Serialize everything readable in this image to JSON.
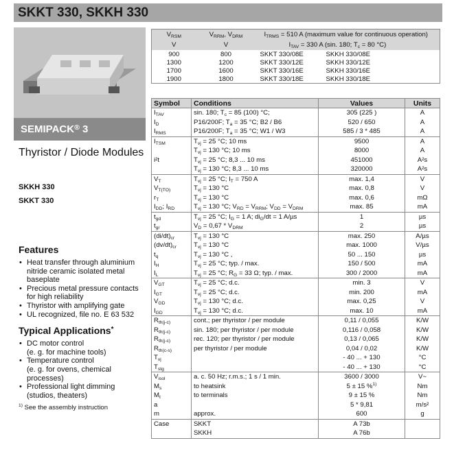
{
  "header": {
    "title": "SKKT 330, SKKH 330"
  },
  "sidebar": {
    "image_caption": [
      "SEMIPACK",
      {
        "sup": "®"
      },
      " 3"
    ],
    "product_family": "Thyristor / Diode Modules",
    "types": [
      "SKKH 330",
      "SKKT 330"
    ],
    "features_title": "Features",
    "features": [
      [
        "Heat transfer through aluminium",
        "nitride ceramic isolated metal",
        "baseplate"
      ],
      [
        "Precious metal pressure contacts",
        "for high reliability"
      ],
      [
        "Thyristor with amplifying gate"
      ],
      [
        "UL recognized, file no. E 63 532"
      ]
    ],
    "applications_title": [
      "Typical Applications",
      {
        "sup": "*"
      }
    ],
    "applications": [
      [
        "DC motor control",
        "(e. g. for machine tools)"
      ],
      [
        "Temperature control",
        "(e. g. for ovens, chemical",
        "processes)"
      ],
      [
        "Professional light dimming",
        "(studios, theaters)"
      ]
    ],
    "footnote": [
      {
        "sup": "1)"
      },
      " See the assembly instruction"
    ]
  },
  "type_table": {
    "header": [
      [
        [
          "V",
          {
            "sub": "RSM"
          }
        ],
        [
          "V",
          {
            "sub": "RRM"
          },
          ", V",
          {
            "sub": "DRM"
          }
        ],
        [
          "I",
          {
            "sub": "TRMS"
          },
          " = 510 A (maximum value for continuous operation)"
        ]
      ],
      [
        "V",
        "V",
        [
          "I",
          {
            "sub": "TAV"
          },
          " = 330 A (sin. 180; T",
          {
            "sub": "c"
          },
          " = 80 °C)"
        ]
      ]
    ],
    "rows": [
      [
        "900",
        "800",
        "SKKT 330/08E",
        "SKKH 330/08E"
      ],
      [
        "1300",
        "1200",
        "SKKT 330/12E",
        "SKKH 330/12E"
      ],
      [
        "1700",
        "1600",
        "SKKT 330/16E",
        "SKKH 330/16E"
      ],
      [
        "1900",
        "1800",
        "SKKT 330/18E",
        "SKKH 330/18E"
      ]
    ]
  },
  "spec_table": {
    "columns": [
      "Symbol",
      "Conditions",
      "Values",
      "Units"
    ],
    "groups": [
      [
        [
          [
            "I",
            {
              "sub": "TAV"
            }
          ],
          [
            "sin. 180; T",
            {
              "sub": "c"
            },
            " = 85 (100) °C;"
          ],
          "305 (225 )",
          "A"
        ],
        [
          [
            "I",
            {
              "sub": "D"
            }
          ],
          [
            "P16/200F; T",
            {
              "sub": "a"
            },
            " = 35 °C; B2 / B6"
          ],
          "520 / 650",
          "A"
        ],
        [
          [
            "I",
            {
              "sub": "RMS"
            }
          ],
          [
            "P16/200F; T",
            {
              "sub": "a"
            },
            " = 35 °C; W1 / W3"
          ],
          "585 / 3 * 485",
          "A"
        ]
      ],
      [
        [
          [
            "I",
            {
              "sub": "TSM"
            }
          ],
          [
            "T",
            {
              "sub": "vj"
            },
            " = 25 °C; 10 ms"
          ],
          "9500",
          "A"
        ],
        [
          null,
          [
            "T",
            {
              "sub": "vj"
            },
            " = 130 °C; 10 ms"
          ],
          "8000",
          "A"
        ],
        [
          [
            "i²t"
          ],
          [
            "T",
            {
              "sub": "vj"
            },
            " = 25 °C; 8,3 ... 10 ms"
          ],
          "451000",
          "A²s"
        ],
        [
          null,
          [
            "T",
            {
              "sub": "vj"
            },
            " = 130 °C; 8,3 ... 10 ms"
          ],
          "320000",
          "A²s"
        ]
      ],
      [
        [
          [
            "V",
            {
              "sub": "T"
            }
          ],
          [
            "T",
            {
              "sub": "vj"
            },
            " = 25 °C; I",
            {
              "sub": "T"
            },
            " = 750 A"
          ],
          "max. 1,4",
          "V"
        ],
        [
          [
            "V",
            {
              "sub": "T(TO)"
            }
          ],
          [
            "T",
            {
              "sub": "vj"
            },
            " = 130 °C"
          ],
          "max. 0,8",
          "V"
        ],
        [
          [
            "r",
            {
              "sub": "T"
            }
          ],
          [
            "T",
            {
              "sub": "vj"
            },
            " = 130 °C"
          ],
          "max. 0,6",
          "mΩ"
        ],
        [
          [
            "I",
            {
              "sub": "DD"
            },
            "; I",
            {
              "sub": "RD"
            }
          ],
          [
            "T",
            {
              "sub": "vj"
            },
            " = 130 °C; V",
            {
              "sub": "RD"
            },
            " = V",
            {
              "sub": "RRM"
            },
            "; V",
            {
              "sub": "DD"
            },
            " = V",
            {
              "sub": "DRM"
            }
          ],
          "max. 85",
          "mA"
        ]
      ],
      [
        [
          [
            "t",
            {
              "sub": "gd"
            }
          ],
          [
            "T",
            {
              "sub": "vj"
            },
            " = 25 °C; I",
            {
              "sub": "G"
            },
            " = 1 A; di",
            {
              "sub": "G"
            },
            "/dt = 1 A/µs"
          ],
          "1",
          "µs"
        ],
        [
          [
            "t",
            {
              "sub": "gr"
            }
          ],
          [
            "V",
            {
              "sub": "D"
            },
            " = 0,67 * V",
            {
              "sub": "DRM"
            }
          ],
          "2",
          "µs"
        ]
      ],
      [
        [
          [
            "(di/dt)",
            {
              "sub": "cr"
            }
          ],
          [
            "T",
            {
              "sub": "vj"
            },
            " = 130 °C"
          ],
          "max. 250",
          "A/µs"
        ],
        [
          [
            "(dv/dt)",
            {
              "sub": "cr"
            }
          ],
          [
            "T",
            {
              "sub": "vj"
            },
            " = 130 °C"
          ],
          "max. 1000",
          "V/µs"
        ],
        [
          [
            "t",
            {
              "sub": "q"
            }
          ],
          [
            "T",
            {
              "sub": "vj"
            },
            " = 130 °C ,"
          ],
          "50 ... 150",
          "µs"
        ],
        [
          [
            "I",
            {
              "sub": "H"
            }
          ],
          [
            "T",
            {
              "sub": "vj"
            },
            " = 25 °C; typ. / max."
          ],
          "150 / 500",
          "mA"
        ],
        [
          [
            "I",
            {
              "sub": "L"
            }
          ],
          [
            "T",
            {
              "sub": "vj"
            },
            " = 25 °C; R",
            {
              "sub": "G"
            },
            " = 33 Ω; typ. / max."
          ],
          "300 / 2000",
          "mA"
        ]
      ],
      [
        [
          [
            "V",
            {
              "sub": "GT"
            }
          ],
          [
            "T",
            {
              "sub": "vj"
            },
            " = 25 °C; d.c."
          ],
          "min. 3",
          "V"
        ],
        [
          [
            "I",
            {
              "sub": "GT"
            }
          ],
          [
            "T",
            {
              "sub": "vj"
            },
            " = 25 °C; d.c."
          ],
          "min. 200",
          "mA"
        ],
        [
          [
            "V",
            {
              "sub": "GD"
            }
          ],
          [
            "T",
            {
              "sub": "vj"
            },
            " = 130 °C; d.c."
          ],
          "max. 0,25",
          "V"
        ],
        [
          [
            "I",
            {
              "sub": "GD"
            }
          ],
          [
            "T",
            {
              "sub": "vj"
            },
            " = 130 °C; d.c."
          ],
          "max. 10",
          "mA"
        ]
      ],
      [
        [
          [
            "R",
            {
              "sub": "th(j-c)"
            }
          ],
          [
            "cont.; per thyristor / per module"
          ],
          "0,11 / 0,055",
          "K/W"
        ],
        [
          [
            "R",
            {
              "sub": "th(j-c)"
            }
          ],
          [
            "sin. 180; per thyristor / per module"
          ],
          "0,116 / 0,058",
          "K/W"
        ],
        [
          [
            "R",
            {
              "sub": "th(j-c)"
            }
          ],
          [
            "rec. 120; per thyristor / per module"
          ],
          "0,13 / 0,065",
          "K/W"
        ],
        [
          [
            "R",
            {
              "sub": "th(c-s)"
            }
          ],
          [
            "per thyristor / per module"
          ],
          "0,04 / 0,02",
          "K/W"
        ],
        [
          [
            "T",
            {
              "sub": "vj"
            }
          ],
          null,
          "- 40 ... + 130",
          "°C"
        ],
        [
          [
            "T",
            {
              "sub": "stg"
            }
          ],
          null,
          "- 40 ... + 130",
          "°C"
        ]
      ],
      [
        [
          [
            "V",
            {
              "sub": "isol"
            }
          ],
          [
            "a. c. 50 Hz; r.m.s.; 1 s / 1 min."
          ],
          "3600 / 3000",
          "V~"
        ],
        [
          [
            "M",
            {
              "sub": "s"
            }
          ],
          [
            "to heatsink"
          ],
          [
            "5 ± 15 %",
            {
              "sup": "1)"
            }
          ],
          "Nm"
        ],
        [
          [
            "M",
            {
              "sub": "t"
            }
          ],
          [
            "to terminals"
          ],
          "9 ± 15 %",
          "Nm"
        ],
        [
          [
            "a"
          ],
          null,
          "5 * 9,81",
          "m/s²"
        ],
        [
          [
            "m"
          ],
          [
            "approx."
          ],
          "600",
          "g"
        ]
      ],
      [
        [
          [
            "Case"
          ],
          [
            "SKKT"
          ],
          "A 73b",
          null
        ],
        [
          null,
          [
            "SKKH"
          ],
          "A 76b",
          null
        ]
      ]
    ]
  }
}
